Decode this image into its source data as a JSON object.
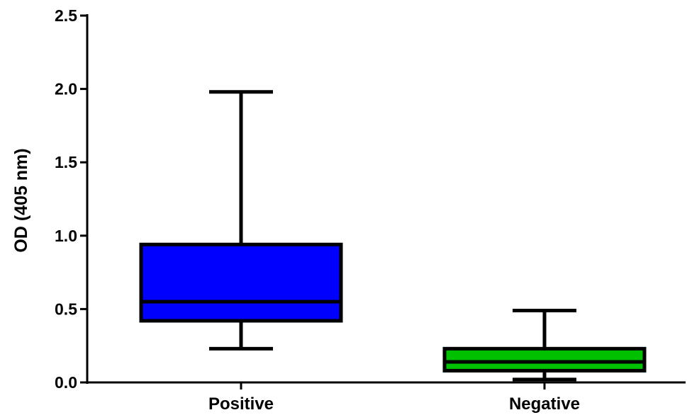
{
  "chart_data": {
    "type": "box",
    "title": "",
    "xlabel": "",
    "ylabel": "OD (405 nm)",
    "ylim": [
      0,
      2.5
    ],
    "yticks": [
      0.0,
      0.5,
      1.0,
      1.5,
      2.0,
      2.5
    ],
    "ytick_labels": [
      "0.0",
      "0.5",
      "1.0",
      "1.5",
      "2.0",
      "2.5"
    ],
    "grid": false,
    "categories": [
      "Positive",
      "Negative"
    ],
    "boxes": [
      {
        "category": "Positive",
        "min": 0.23,
        "q1": 0.42,
        "median": 0.55,
        "q3": 0.94,
        "max": 1.98,
        "color": "#0000ff"
      },
      {
        "category": "Negative",
        "min": 0.02,
        "q1": 0.08,
        "median": 0.14,
        "q3": 0.23,
        "max": 0.49,
        "color": "#00c000"
      }
    ]
  }
}
